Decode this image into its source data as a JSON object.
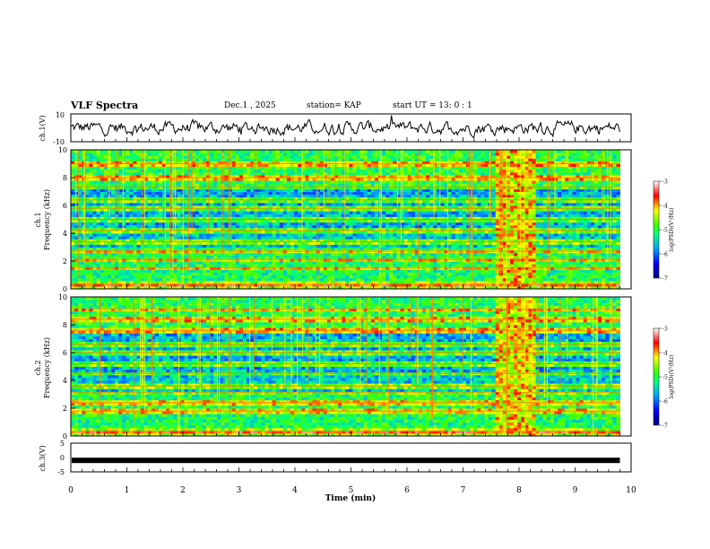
{
  "header": {
    "title": "VLF Spectra",
    "date": "Dec.1 , 2025",
    "station": "station= KAP",
    "start": "start UT = 13: 0 : 1"
  },
  "chart_data": [
    {
      "type": "line",
      "panel": "ch1-waveform",
      "ylabel": "ch.1(V)",
      "ylim": [
        -10,
        10
      ],
      "yticks": [
        "10",
        "-10"
      ],
      "x_range_min": [
        0,
        9.8
      ]
    },
    {
      "type": "heatmap",
      "panel": "ch1-spectrogram",
      "ylabel_line1": "ch.1",
      "ylabel_line2": "Frequency (kHz)",
      "ylim": [
        0,
        10
      ],
      "yticks": [
        "0",
        "2",
        "4",
        "6",
        "8",
        "10"
      ],
      "colorbar": {
        "label": "log(PSD)(V²/Hz)",
        "range": [
          -7,
          -3
        ],
        "ticks": [
          "-3",
          "-4",
          "-5",
          "-6",
          "-7"
        ]
      },
      "emission_lines_khz": [
        0.3,
        1.5,
        2.1,
        2.7,
        3.4,
        4.2,
        5.0,
        5.8,
        6.4,
        7.3,
        8.0,
        9.0
      ],
      "burst_minutes": [
        7.6,
        8.3
      ]
    },
    {
      "type": "heatmap",
      "panel": "ch2-spectrogram",
      "ylabel_line1": "ch.2",
      "ylabel_line2": "Frequency (kHz)",
      "ylim": [
        0,
        10
      ],
      "yticks": [
        "0",
        "2",
        "4",
        "6",
        "8",
        "10"
      ],
      "colorbar": {
        "label": "log(PSD)(V²/Hz)",
        "range": [
          -7,
          -3
        ],
        "ticks": [
          "-3",
          "-4",
          "-5",
          "-6",
          "-7"
        ]
      },
      "emission_lines_khz": [
        0.3,
        1.8,
        2.4,
        3.1,
        3.6,
        4.5,
        5.2,
        6.0,
        6.6,
        7.6,
        8.4,
        9.1
      ],
      "burst_minutes": [
        7.6,
        8.3
      ]
    },
    {
      "type": "line",
      "panel": "ch3-waveform",
      "ylabel": "ch.3(V)",
      "ylim": [
        -5,
        5
      ],
      "yticks": [
        "5",
        "0",
        "-5"
      ],
      "level": -1
    }
  ],
  "xaxis": {
    "label": "Time (min)",
    "ticks": [
      "0",
      "1",
      "2",
      "3",
      "4",
      "5",
      "6",
      "7",
      "8",
      "9",
      "10"
    ],
    "range": [
      0,
      10
    ]
  },
  "colors": {
    "low": "#00008b",
    "mid": "#00ff00",
    "high": "#ff0000",
    "max": "#ffffff"
  }
}
